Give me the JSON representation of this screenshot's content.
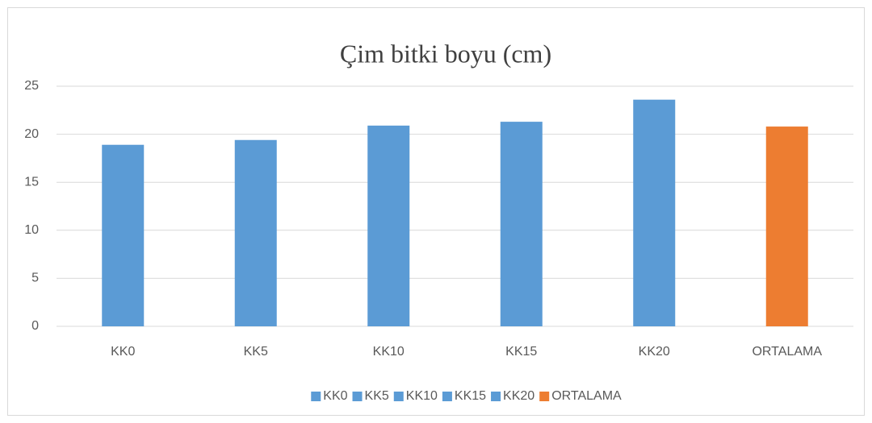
{
  "chart_data": {
    "type": "bar",
    "title": "Çim bitki boyu (cm)",
    "categories": [
      "KK0",
      "KK5",
      "KK10",
      "KK15",
      "KK20",
      "ORTALAMA"
    ],
    "values": [
      18.9,
      19.4,
      20.9,
      21.3,
      23.6,
      20.8
    ],
    "colors": [
      "#5b9bd5",
      "#5b9bd5",
      "#5b9bd5",
      "#5b9bd5",
      "#5b9bd5",
      "#ed7d31"
    ],
    "ylim": [
      0,
      25
    ],
    "yticks": [
      0,
      5,
      10,
      15,
      20,
      25
    ],
    "grid": true,
    "legend": "bottom"
  }
}
